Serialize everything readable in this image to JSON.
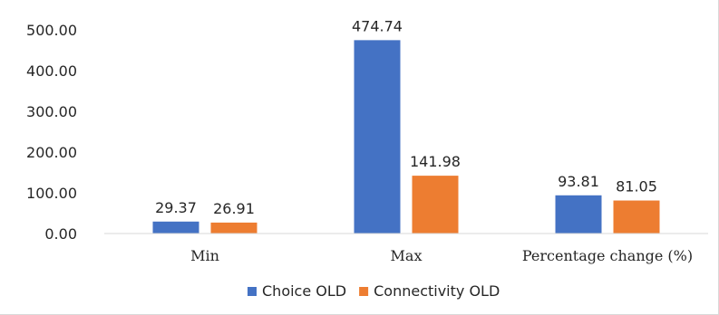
{
  "chart_data": {
    "type": "bar",
    "title": "",
    "xlabel": "",
    "ylabel": "",
    "categories": [
      "Min",
      "Max",
      "Percentage change (%)"
    ],
    "series": [
      {
        "name": "Choice OLD",
        "values": [
          29.37,
          474.74,
          93.81
        ],
        "labels": [
          "29.37",
          "474.74",
          "93.81"
        ],
        "color": "#4472c4"
      },
      {
        "name": "Connectivity OLD",
        "values": [
          26.91,
          141.98,
          81.05
        ],
        "labels": [
          "26.91",
          "141.98",
          "81.05"
        ],
        "color": "#ed7d31"
      }
    ],
    "ylim": [
      0,
      500
    ],
    "yticks": [
      0,
      100,
      200,
      300,
      400,
      500
    ],
    "ytick_labels": [
      "0.00",
      "100.00",
      "200.00",
      "300.00",
      "400.00",
      "500.00"
    ],
    "grid": false,
    "legend_position": "bottom",
    "axis_color": "#d9d9d9"
  }
}
